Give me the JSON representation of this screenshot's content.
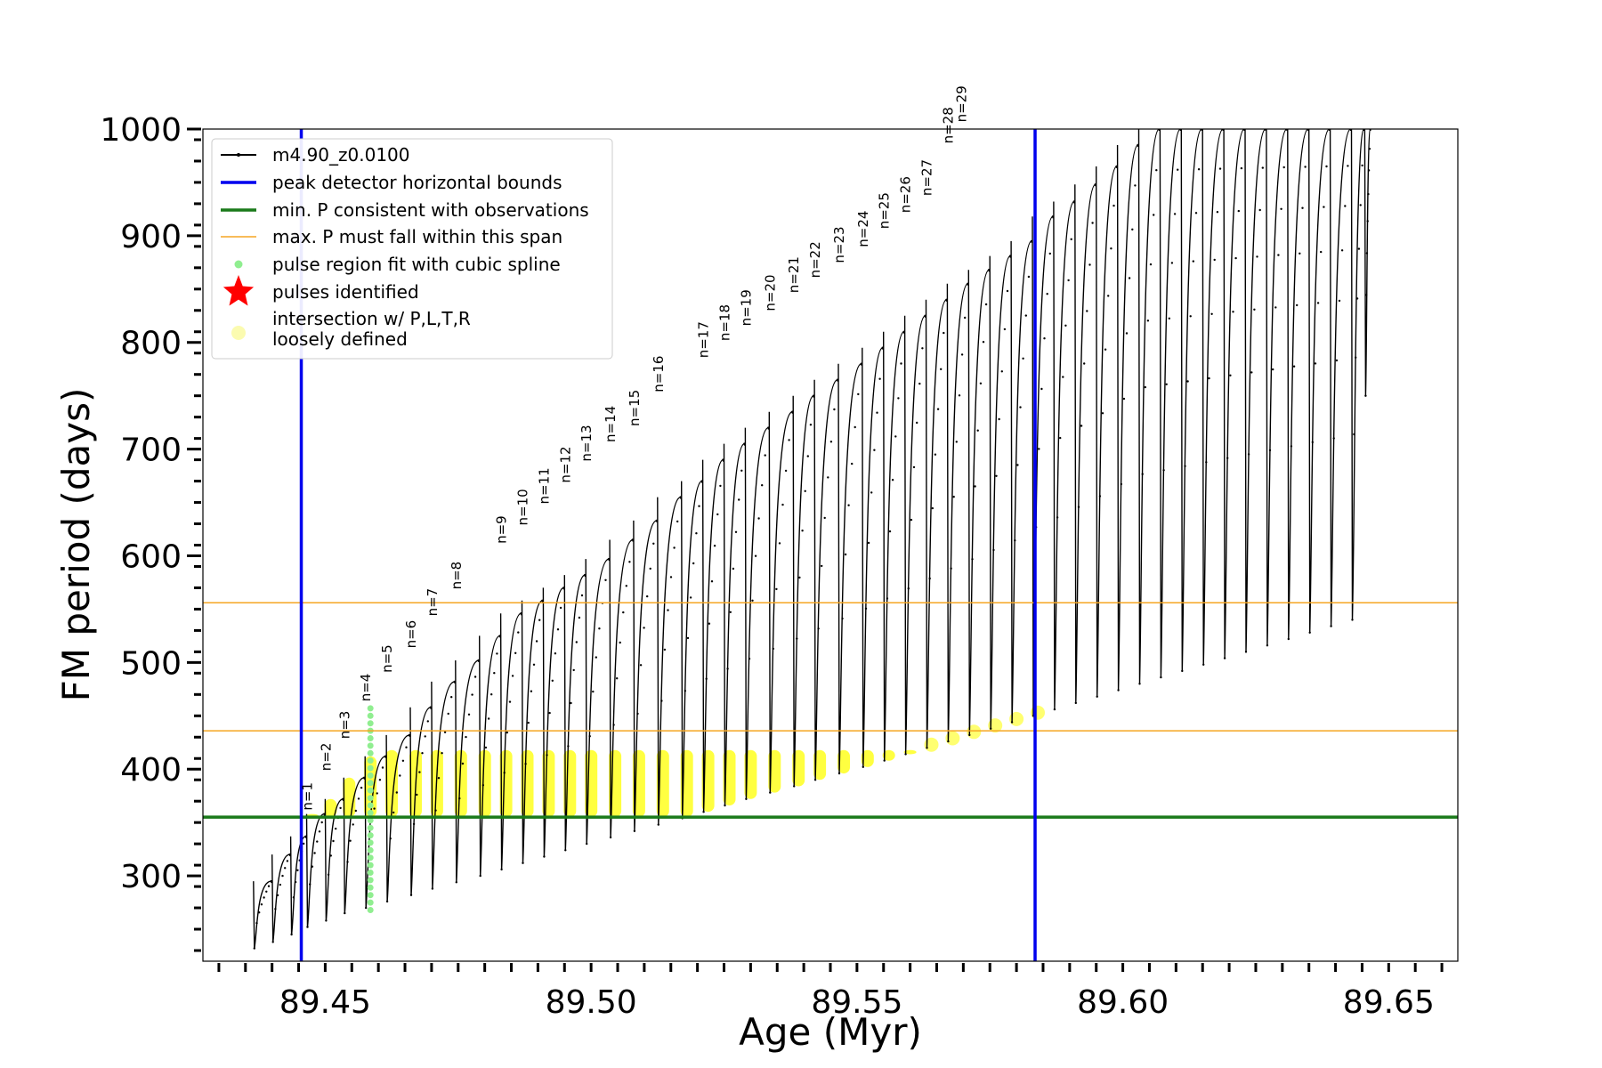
{
  "chart_data": {
    "type": "line",
    "title": "",
    "xlabel": "Age (Myr)",
    "ylabel": "FM period (days)",
    "xlim": [
      89.427,
      89.663
    ],
    "ylim": [
      220,
      1000
    ],
    "xticks": [
      89.45,
      89.5,
      89.55,
      89.6,
      89.65
    ],
    "xtick_labels": [
      "89.45",
      "89.50",
      "89.55",
      "89.60",
      "89.65"
    ],
    "yticks": [
      300,
      400,
      500,
      600,
      700,
      800,
      900,
      1000
    ],
    "ytick_labels": [
      "300",
      "400",
      "500",
      "600",
      "700",
      "800",
      "900",
      "1000"
    ],
    "legend": {
      "placement": "top-left",
      "entries": [
        {
          "label": "m4.90_z0.0100",
          "kind": "line-marker",
          "color": "#000000"
        },
        {
          "label": "peak detector horizontal bounds",
          "kind": "line",
          "color": "#0000ee"
        },
        {
          "label": "min. P consistent with observations",
          "kind": "line",
          "color": "#1a7a1a"
        },
        {
          "label": "max. P must fall within this span",
          "kind": "line",
          "color": "#f5a623"
        },
        {
          "label": "pulse region fit with cubic spline",
          "kind": "dot",
          "color": "#90ee90"
        },
        {
          "label": "pulses identified",
          "kind": "star",
          "color": "#ff0000"
        },
        {
          "label": "intersection w/ P,L,T,R\nloosely defined",
          "kind": "circle",
          "color": "#fbfbb0"
        }
      ]
    },
    "vertical_lines": {
      "label": "peak detector horizontal bounds",
      "x": [
        89.4455,
        89.5835
      ],
      "color": "#0000ee"
    },
    "min_period_line": {
      "label": "min. P consistent with observations",
      "y": 355,
      "color": "#1a7a1a"
    },
    "max_period_span": {
      "label": "max. P must fall within this span",
      "y": [
        436,
        556
      ],
      "color": "#f5a623"
    },
    "series": [
      {
        "name": "m4.90_z0.0100",
        "color": "#000000",
        "description": "sawtooth period evolution; each pulse listed as onset age and peak period",
        "pulses": [
          {
            "x": 89.4365,
            "low": 232,
            "high": 295
          },
          {
            "x": 89.44,
            "low": 238,
            "high": 320
          },
          {
            "x": 89.4435,
            "low": 245,
            "high": 337
          },
          {
            "x": 89.4465,
            "low": 252,
            "high": 358
          },
          {
            "x": 89.45,
            "low": 258,
            "high": 372
          },
          {
            "x": 89.4535,
            "low": 265,
            "high": 392
          },
          {
            "x": 89.4575,
            "low": 270,
            "high": 412
          },
          {
            "x": 89.4615,
            "low": 276,
            "high": 432
          },
          {
            "x": 89.466,
            "low": 282,
            "high": 458
          },
          {
            "x": 89.47,
            "low": 288,
            "high": 482
          },
          {
            "x": 89.4745,
            "low": 294,
            "high": 502
          },
          {
            "x": 89.479,
            "low": 300,
            "high": 525
          },
          {
            "x": 89.483,
            "low": 306,
            "high": 546
          },
          {
            "x": 89.487,
            "low": 312,
            "high": 558
          },
          {
            "x": 89.491,
            "low": 318,
            "high": 570
          },
          {
            "x": 89.495,
            "low": 324,
            "high": 582
          },
          {
            "x": 89.499,
            "low": 330,
            "high": 597
          },
          {
            "x": 89.5035,
            "low": 336,
            "high": 615
          },
          {
            "x": 89.508,
            "low": 342,
            "high": 633
          },
          {
            "x": 89.5125,
            "low": 348,
            "high": 655
          },
          {
            "x": 89.517,
            "low": 354,
            "high": 670
          },
          {
            "x": 89.521,
            "low": 360,
            "high": 690
          },
          {
            "x": 89.525,
            "low": 366,
            "high": 705
          },
          {
            "x": 89.529,
            "low": 372,
            "high": 720
          },
          {
            "x": 89.5335,
            "low": 378,
            "high": 735
          },
          {
            "x": 89.538,
            "low": 384,
            "high": 750
          },
          {
            "x": 89.542,
            "low": 390,
            "high": 765
          },
          {
            "x": 89.5465,
            "low": 396,
            "high": 780
          },
          {
            "x": 89.551,
            "low": 402,
            "high": 795
          },
          {
            "x": 89.555,
            "low": 408,
            "high": 810
          },
          {
            "x": 89.559,
            "low": 414,
            "high": 825
          },
          {
            "x": 89.563,
            "low": 420,
            "high": 840
          },
          {
            "x": 89.567,
            "low": 426,
            "high": 855
          },
          {
            "x": 89.571,
            "low": 432,
            "high": 868
          },
          {
            "x": 89.575,
            "low": 438,
            "high": 881
          },
          {
            "x": 89.579,
            "low": 444,
            "high": 895
          },
          {
            "x": 89.583,
            "low": 450,
            "high": 918
          },
          {
            "x": 89.587,
            "low": 456,
            "high": 932
          },
          {
            "x": 89.591,
            "low": 462,
            "high": 948
          },
          {
            "x": 89.595,
            "low": 468,
            "high": 965
          },
          {
            "x": 89.599,
            "low": 474,
            "high": 985
          },
          {
            "x": 89.603,
            "low": 480,
            "high": 1000
          },
          {
            "x": 89.607,
            "low": 486,
            "high": 1000
          },
          {
            "x": 89.611,
            "low": 492,
            "high": 1000
          },
          {
            "x": 89.615,
            "low": 498,
            "high": 1000
          },
          {
            "x": 89.619,
            "low": 504,
            "high": 1000
          },
          {
            "x": 89.623,
            "low": 510,
            "high": 1000
          },
          {
            "x": 89.627,
            "low": 516,
            "high": 1000
          },
          {
            "x": 89.631,
            "low": 522,
            "high": 1000
          },
          {
            "x": 89.635,
            "low": 528,
            "high": 1000
          },
          {
            "x": 89.639,
            "low": 534,
            "high": 1000
          },
          {
            "x": 89.643,
            "low": 540,
            "high": 1000
          },
          {
            "x": 89.6455,
            "low": 750,
            "high": 1000
          }
        ]
      }
    ],
    "spline_region": {
      "label": "pulse region fit with cubic spline",
      "x": 89.4585,
      "y_range": [
        268,
        458
      ]
    },
    "pulse_labels": [
      {
        "text": "n=1",
        "x": 89.4465,
        "y": 358
      },
      {
        "text": "n=2",
        "x": 89.45,
        "y": 395
      },
      {
        "text": "n=3",
        "x": 89.4535,
        "y": 425
      },
      {
        "text": "n=4",
        "x": 89.4575,
        "y": 460
      },
      {
        "text": "n=5",
        "x": 89.4615,
        "y": 487
      },
      {
        "text": "n=6",
        "x": 89.466,
        "y": 510
      },
      {
        "text": "n=7",
        "x": 89.47,
        "y": 540
      },
      {
        "text": "n=8",
        "x": 89.4745,
        "y": 565
      },
      {
        "text": "n=9",
        "x": 89.483,
        "y": 608
      },
      {
        "text": "n=10",
        "x": 89.487,
        "y": 625
      },
      {
        "text": "n=11",
        "x": 89.491,
        "y": 645
      },
      {
        "text": "n=12",
        "x": 89.495,
        "y": 665
      },
      {
        "text": "n=13",
        "x": 89.499,
        "y": 685
      },
      {
        "text": "n=14",
        "x": 89.5035,
        "y": 703
      },
      {
        "text": "n=15",
        "x": 89.508,
        "y": 718
      },
      {
        "text": "n=16",
        "x": 89.5125,
        "y": 750
      },
      {
        "text": "n=17",
        "x": 89.521,
        "y": 782
      },
      {
        "text": "n=18",
        "x": 89.525,
        "y": 798
      },
      {
        "text": "n=19",
        "x": 89.529,
        "y": 812
      },
      {
        "text": "n=20",
        "x": 89.5335,
        "y": 826
      },
      {
        "text": "n=21",
        "x": 89.538,
        "y": 843
      },
      {
        "text": "n=22",
        "x": 89.542,
        "y": 857
      },
      {
        "text": "n=23",
        "x": 89.5465,
        "y": 871
      },
      {
        "text": "n=24",
        "x": 89.551,
        "y": 886
      },
      {
        "text": "n=25",
        "x": 89.555,
        "y": 903
      },
      {
        "text": "n=26",
        "x": 89.559,
        "y": 918
      },
      {
        "text": "n=27",
        "x": 89.563,
        "y": 934
      },
      {
        "text": "n=28",
        "x": 89.567,
        "y": 983
      },
      {
        "text": "n=29",
        "x": 89.5695,
        "y": 1003
      }
    ]
  }
}
